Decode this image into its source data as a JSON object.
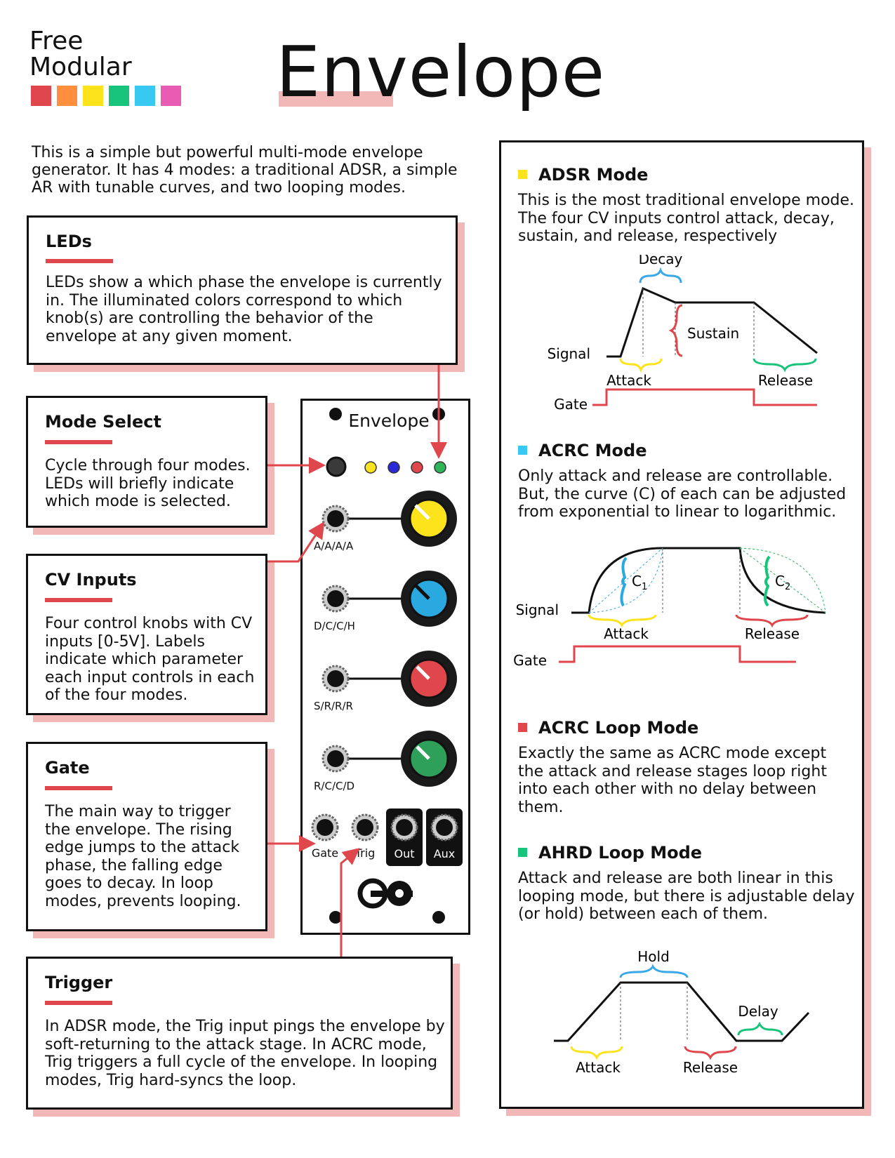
{
  "brand": {
    "line1": "Free",
    "line2": "Modular",
    "swatches": [
      "#e0474c",
      "#ff8f3f",
      "#fde31c",
      "#18c47c",
      "#38c9f2",
      "#e95cb4"
    ]
  },
  "title": "Envelope",
  "intro": "This is a simple but powerful multi-mode envelope generator. It has 4 modes: a traditional ADSR, a simple AR with tunable curves, and two looping modes.",
  "cards": {
    "leds": {
      "title": "LEDs",
      "text": "LEDs show a which phase the envelope is currently in. The illuminated colors correspond to which knob(s) are controlling the behavior of the envelope at any given moment."
    },
    "mode_select": {
      "title": "Mode Select",
      "text": "Cycle through four modes. LEDs will briefly indicate which mode is selected."
    },
    "cv_inputs": {
      "title": "CV Inputs",
      "text": "Four control knobs with CV inputs [0-5V]. Labels indicate which parameter each input controls in each of the four modes."
    },
    "gate": {
      "title": "Gate",
      "text": "The main way to trigger the envelope. The rising edge jumps to the attack phase, the falling edge goes to decay. In loop modes, prevents looping."
    },
    "trigger": {
      "title": "Trigger",
      "text": "In ADSR mode, the Trig input pings the envelope by soft-returning to the attack stage. In ACRC mode, Trig triggers a full cycle of the envelope. In looping modes, Trig hard-syncs the loop."
    }
  },
  "module": {
    "title": "Envelope",
    "led_colors": [
      "#fde31c",
      "#2a2ad8",
      "#e0474c",
      "#2fb45a"
    ],
    "rows": [
      {
        "label": "A/A/A/A",
        "knob_color": "#fde31c"
      },
      {
        "label": "D/C/C/H",
        "knob_color": "#2aa8e0"
      },
      {
        "label": "S/R/R/R",
        "knob_color": "#e0474c"
      },
      {
        "label": "R/C/C/D",
        "knob_color": "#2fa05a"
      }
    ],
    "jacks": {
      "gate": "Gate",
      "trig": "Trig",
      "out": "Out",
      "aux": "Aux"
    },
    "logo": "logo-mark"
  },
  "modes": {
    "adsr": {
      "title": "ADSR Mode",
      "color": "#fde31c",
      "text": "This is the most traditional envelope mode. The four CV inputs control attack, decay, sustain, and release, respectively",
      "labels": {
        "decay": "Decay",
        "sustain": "Sustain",
        "signal": "Signal",
        "attack": "Attack",
        "release": "Release",
        "gate": "Gate"
      }
    },
    "acrc": {
      "title": "ACRC Mode",
      "color": "#38c9f2",
      "text": "Only attack and release are controllable. But, the curve (C) of each can be adjusted from exponential to linear to logarithmic.",
      "labels": {
        "c1": "C",
        "c1_sub": "1",
        "c2": "C",
        "c2_sub": "2",
        "signal": "Signal",
        "attack": "Attack",
        "release": "Release",
        "gate": "Gate"
      }
    },
    "acrc_loop": {
      "title": "ACRC Loop Mode",
      "color": "#e0474c",
      "text": "Exactly the same as ACRC mode except the attack and release stages loop right into each other with no delay between them."
    },
    "ahrd_loop": {
      "title": "AHRD Loop Mode",
      "color": "#18c47c",
      "text": "Attack and release are both linear in this looping mode, but there is adjustable delay (or hold) between each of them.",
      "labels": {
        "hold": "Hold",
        "delay": "Delay",
        "attack": "Attack",
        "release": "Release"
      }
    }
  }
}
